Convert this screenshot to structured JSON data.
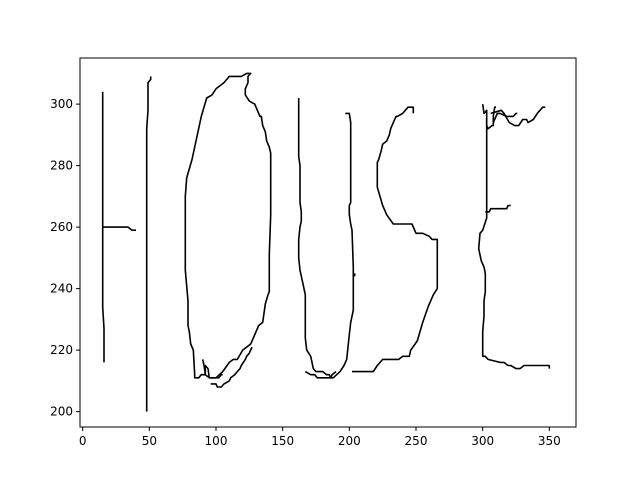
{
  "chart_data": {
    "type": "line",
    "title": "",
    "xlabel": "",
    "ylabel": "",
    "xlim": [
      -2,
      370
    ],
    "ylim": [
      195,
      315
    ],
    "xticks": [
      0,
      50,
      100,
      150,
      200,
      250,
      300,
      350
    ],
    "yticks": [
      200,
      220,
      240,
      260,
      280,
      300
    ],
    "grid": false,
    "legend": "none",
    "line_color": "#000000",
    "series": [
      {
        "x": [
          15,
          15,
          15,
          16,
          16
        ],
        "y": [
          304,
          260,
          234,
          227,
          216
        ]
      },
      {
        "x": [
          15,
          30,
          34,
          37,
          40
        ],
        "y": [
          260,
          260,
          260,
          259,
          259
        ]
      },
      {
        "x": [
          48,
          48,
          48,
          49,
          49,
          51,
          51
        ],
        "y": [
          200,
          270,
          292,
          298,
          307,
          308,
          309
        ]
      },
      {
        "x": [
          118,
          110,
          106,
          100,
          97,
          93,
          89,
          85,
          82,
          78,
          77,
          77,
          79,
          79,
          80,
          81,
          83,
          84,
          84,
          87,
          89,
          92,
          92,
          94,
          95,
          100,
          105,
          110,
          113,
          116,
          120,
          126,
          129,
          132,
          135,
          137,
          139,
          140,
          140,
          141,
          141,
          141,
          141,
          140,
          139,
          138,
          137,
          135,
          134,
          133,
          129,
          125,
          122,
          122,
          124,
          124,
          126,
          124,
          123,
          119,
          116,
          115,
          118
        ],
        "y": [
          309,
          309,
          307,
          305,
          303,
          302,
          296,
          288,
          282,
          276,
          270,
          246,
          236,
          228,
          226,
          222,
          220,
          212,
          211,
          211,
          212,
          212,
          215,
          214,
          211,
          211,
          213,
          216,
          217,
          217,
          220,
          222,
          225,
          228,
          229,
          235,
          238,
          239,
          251,
          264,
          276,
          281,
          284,
          286,
          287,
          288,
          291,
          293,
          296,
          296,
          300,
          301,
          303,
          305,
          307,
          309,
          310,
          310,
          310,
          309,
          309,
          309,
          309
        ]
      },
      {
        "x": [
          90,
          91,
          92,
          95,
          102,
          104,
          105
        ],
        "y": [
          217,
          215,
          212,
          211,
          211,
          212,
          212
        ]
      },
      {
        "x": [
          96,
          100,
          101,
          104,
          106,
          110,
          111,
          114,
          116,
          118,
          119,
          122,
          123,
          125,
          127
        ],
        "y": [
          209,
          209,
          208,
          208,
          209,
          210,
          211,
          212,
          213,
          214,
          215,
          217,
          218,
          219,
          221
        ]
      },
      {
        "x": [
          162,
          162,
          163,
          163,
          164,
          164,
          163,
          162,
          162,
          163,
          165,
          167,
          167,
          167,
          168,
          171,
          173,
          175,
          180,
          183,
          185,
          186,
          188,
          193,
          196,
          198,
          199,
          200,
          201,
          203,
          203,
          203,
          203,
          202,
          201,
          200,
          200,
          201,
          201,
          201,
          201,
          200,
          199,
          197
        ],
        "y": [
          302,
          283,
          280,
          268,
          265,
          262,
          260,
          256,
          250,
          246,
          242,
          238,
          226,
          224,
          220,
          218,
          214,
          213,
          213,
          212,
          212,
          211,
          211,
          213,
          215,
          217,
          221,
          225,
          229,
          233,
          241,
          244,
          247,
          259,
          261,
          264,
          267,
          268,
          271,
          289,
          294,
          297,
          297,
          297
        ]
      },
      {
        "x": [
          167,
          171,
          174,
          176,
          183,
          186,
          187,
          190
        ],
        "y": [
          213,
          212,
          212,
          211,
          211,
          211,
          212,
          213
        ]
      },
      {
        "x": [
          202,
          212,
          218,
          221,
          225,
          230,
          234,
          237,
          240,
          245,
          246,
          251,
          255,
          259,
          263,
          266,
          266,
          266,
          265,
          264,
          262,
          260,
          255,
          250,
          247,
          243,
          238,
          233,
          228,
          225,
          223,
          221,
          221,
          222,
          224,
          225,
          228,
          230,
          231,
          233,
          235,
          236,
          240,
          242,
          244,
          248,
          248
        ],
        "y": [
          213,
          213,
          213,
          215,
          217,
          217,
          217,
          217,
          218,
          218,
          220,
          223,
          229,
          234,
          238,
          240,
          254,
          256,
          256,
          256,
          256,
          257,
          258,
          258,
          261,
          261,
          261,
          261,
          264,
          267,
          270,
          273,
          281,
          282,
          285,
          287,
          288,
          290,
          292,
          294,
          296,
          296,
          297,
          298,
          299,
          299,
          297
        ]
      },
      {
        "x": [
          204,
          204
        ],
        "y": [
          245,
          244
        ]
      },
      {
        "x": [
          300,
          301,
          303,
          303,
          303,
          304,
          307,
          308,
          308,
          309,
          310
        ],
        "y": [
          300,
          297,
          298,
          295,
          293,
          292,
          293,
          293,
          296,
          299,
          299
        ]
      },
      {
        "x": [
          303,
          303,
          303,
          303,
          303,
          300,
          298,
          297,
          298,
          299,
          301,
          302,
          302,
          301,
          301,
          300,
          300,
          302,
          304,
          313,
          316,
          319,
          321,
          325,
          328,
          331,
          337,
          343,
          350,
          350
        ],
        "y": [
          295,
          280,
          276,
          270,
          263,
          259,
          258,
          253,
          251,
          249,
          247,
          245,
          239,
          236,
          231,
          226,
          218,
          218,
          217,
          216,
          216,
          215,
          215,
          214,
          214,
          215,
          215,
          215,
          215,
          214
        ]
      },
      {
        "x": [
          302,
          305,
          306,
          310,
          314,
          318,
          319,
          321
        ],
        "y": [
          265,
          265,
          266,
          266,
          266,
          266,
          267,
          267
        ]
      },
      {
        "x": [
          306,
          314,
          316,
          320,
          324,
          327,
          330,
          333,
          334,
          338,
          341,
          343,
          345,
          347
        ],
        "y": [
          297,
          298,
          297,
          294,
          293,
          293,
          295,
          295,
          294,
          295,
          297,
          298,
          299,
          299
        ]
      },
      {
        "x": [
          308,
          311,
          313,
          318,
          321,
          323,
          325,
          326
        ],
        "y": [
          294,
          297,
          297,
          296,
          296,
          296,
          297,
          297
        ]
      }
    ]
  }
}
